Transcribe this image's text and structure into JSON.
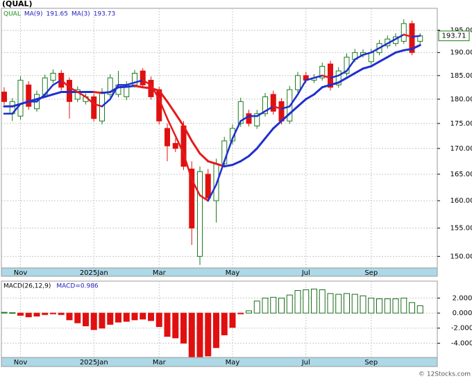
{
  "chart_data": [
    {
      "type": "candlestick",
      "title": "(QUAL)",
      "symbol": "QUAL",
      "symbol_color": "#1a8a1a",
      "categories": [
        null,
        null,
        "Nov",
        null,
        null,
        null,
        null,
        null,
        null,
        null,
        null,
        "2025Jan",
        null,
        null,
        null,
        null,
        null,
        null,
        null,
        "Mar",
        null,
        null,
        null,
        null,
        null,
        null,
        null,
        null,
        "May",
        null,
        null,
        null,
        null,
        null,
        null,
        null,
        null,
        "Jul",
        null,
        null,
        null,
        null,
        null,
        null,
        null,
        "Sep",
        null,
        null,
        null,
        null,
        null,
        null
      ],
      "open": [
        181.5,
        177,
        176.5,
        183,
        178,
        181,
        184,
        185.5,
        184,
        180,
        179.5,
        180.5,
        175.5,
        181,
        181,
        180.5,
        183,
        186,
        184,
        182,
        174,
        171,
        174.5,
        166,
        150,
        165,
        160,
        167,
        171.5,
        175,
        177,
        174.5,
        177,
        181,
        179.5,
        175.5,
        182,
        185,
        184,
        184.5,
        187.5,
        183,
        185.5,
        188.5,
        189.5,
        188,
        190,
        191.5,
        192,
        192.5,
        196.5,
        192.5
      ],
      "high": [
        182.5,
        180.2,
        184.8,
        183.8,
        181.8,
        185.2,
        186.3,
        186.2,
        184.6,
        182.7,
        181.2,
        181.2,
        182.3,
        185.3,
        186,
        183.8,
        186.2,
        186.6,
        184.8,
        182.6,
        175,
        172,
        175.5,
        167.5,
        166.5,
        166,
        168,
        172.3,
        174.8,
        180.3,
        177.8,
        177.8,
        181.3,
        181.8,
        180.2,
        182.8,
        185.8,
        185.8,
        185.3,
        187.8,
        188.2,
        186.8,
        189.8,
        190.8,
        190.7,
        190.8,
        192.8,
        193.8,
        194.3,
        197.5,
        197.2,
        194.3
      ],
      "low": [
        178.8,
        175.5,
        175.8,
        177.8,
        177.4,
        180.4,
        183.4,
        181.8,
        176,
        179.4,
        178.9,
        175.4,
        174.8,
        180.4,
        180.4,
        179.8,
        182.4,
        182.4,
        179.9,
        174.8,
        167.5,
        169.3,
        165.8,
        152,
        148.5,
        159.8,
        156,
        166.4,
        170.8,
        174.3,
        174.4,
        173.9,
        176.4,
        176.8,
        174.8,
        174.9,
        181.4,
        183.4,
        183.4,
        183.9,
        181.8,
        182.4,
        184.9,
        187.9,
        188.9,
        187.4,
        189.4,
        190.9,
        191.4,
        191.9,
        189.4,
        191.9
      ],
      "close": [
        179.5,
        179.5,
        184,
        178.5,
        181,
        184.5,
        185.5,
        182.5,
        179.5,
        182,
        180.5,
        176,
        181.5,
        184.5,
        183,
        183,
        185.5,
        183,
        180.5,
        175.5,
        170.5,
        170,
        166.5,
        155,
        165.5,
        160.5,
        167,
        171.5,
        174,
        179.5,
        175,
        177,
        180.5,
        177.5,
        175.5,
        182,
        185,
        184,
        184.5,
        187,
        182.5,
        186,
        189,
        190,
        190,
        190,
        192,
        193,
        193.5,
        196.5,
        190,
        193.71
      ],
      "up_color": "#1a7a1a",
      "down_color": "#e01010",
      "series": [
        {
          "name": "MA(9)",
          "legend_color": "#2020c0",
          "up_color": "#1f2fd0",
          "down_color": "#e41a1a",
          "width": 3,
          "values": [
            178.5,
            178.5,
            179,
            179.5,
            180,
            180.5,
            181,
            181.5,
            181.5,
            181.5,
            181.5,
            181.5,
            181.3,
            181.5,
            182.5,
            182.6,
            182.8,
            182.5,
            182.3,
            181.8,
            179.5,
            177,
            174.5,
            171.5,
            169,
            167.5,
            167,
            166.5,
            166.8,
            167.5,
            168.5,
            170,
            172,
            174,
            175.5,
            177,
            178.5,
            180,
            181,
            182.5,
            183,
            183.5,
            184.5,
            185.5,
            186.5,
            187,
            188,
            189,
            190,
            190.5,
            190.8,
            191.65
          ]
        },
        {
          "name": "MA(3)",
          "legend_color": "#2020c0",
          "up_color": "#1f2fd0",
          "down_color": "#e41a1a",
          "width": 2.5,
          "values": [
            177,
            177,
            179,
            179.5,
            179.5,
            181,
            183,
            184,
            182.5,
            181.5,
            180.5,
            179,
            178.5,
            180,
            183,
            183,
            183.5,
            184,
            183,
            180,
            176,
            172.5,
            169,
            164,
            161,
            160,
            163,
            167.5,
            172,
            175.5,
            176.5,
            176.5,
            177.5,
            178.5,
            178,
            178.5,
            181,
            184,
            184.5,
            185,
            184.5,
            185,
            186,
            188.5,
            189.5,
            190,
            191,
            192,
            193,
            194,
            193.5,
            193.73
          ]
        }
      ],
      "log_scale": true,
      "ylim": [
        148,
        200
      ],
      "yticks": [
        {
          "value": 150,
          "label": "150.00"
        },
        {
          "value": 155,
          "label": "155.00"
        },
        {
          "value": 160,
          "label": "160.00"
        },
        {
          "value": 165,
          "label": "165.00"
        },
        {
          "value": 170,
          "label": "170.00"
        },
        {
          "value": 175,
          "label": "175.00"
        },
        {
          "value": 180,
          "label": "180.00"
        },
        {
          "value": 185,
          "label": "185.00"
        },
        {
          "value": 190,
          "label": "190.00"
        },
        {
          "value": 195,
          "label": "195.00"
        }
      ],
      "grid": true
    },
    {
      "type": "histogram_bars",
      "title": "MACD(26,12,9)",
      "current_label": "MACD=0.986",
      "current_color": "#2020c0",
      "series": [
        {
          "name": "MACD",
          "up_color": "#1a6a1a",
          "down_color": "#e01010",
          "values": [
            0.1,
            0.05,
            -0.3,
            -0.5,
            -0.4,
            -0.2,
            -0.1,
            -0.2,
            -0.9,
            -1.3,
            -1.7,
            -2.2,
            -2.0,
            -1.5,
            -1.2,
            -1.1,
            -0.9,
            -0.8,
            -1.0,
            -1.8,
            -3.1,
            -3.3,
            -4.0,
            -5.8,
            -5.8,
            -5.7,
            -4.6,
            -2.9,
            -1.9,
            -0.1,
            0.3,
            1.6,
            2.0,
            2.1,
            2.0,
            2.4,
            3.0,
            3.1,
            3.2,
            3.1,
            2.6,
            2.5,
            2.6,
            2.5,
            2.3,
            2.0,
            1.9,
            1.9,
            1.9,
            2.0,
            1.4,
            0.986
          ]
        }
      ],
      "ylim": [
        -5.9,
        4.25
      ],
      "yticks": [
        {
          "value": -4,
          "label": "-4.000"
        },
        {
          "value": -2,
          "label": "-2.000"
        },
        {
          "value": 0,
          "label": "0.000"
        },
        {
          "value": 2,
          "label": "2.000"
        }
      ],
      "grid": true
    },
    {
      "type": "footer",
      "text": "© 12Stocks.com"
    }
  ]
}
